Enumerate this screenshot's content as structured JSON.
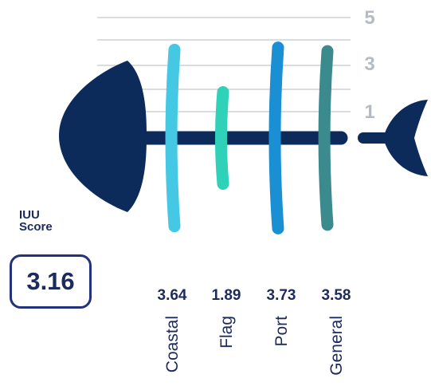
{
  "score": {
    "label": "IUU\nScore",
    "value": "3.16"
  },
  "chart_data": {
    "type": "bar",
    "categories": [
      "Coastal",
      "Flag",
      "Port",
      "General"
    ],
    "values": [
      3.64,
      1.89,
      3.73,
      3.58
    ],
    "value_labels": [
      "3.64",
      "1.89",
      "3.73",
      "3.58"
    ],
    "y_ticks": [
      "5",
      "3",
      "1"
    ],
    "ylim": [
      0,
      5
    ],
    "grid": true,
    "colors": {
      "Coastal": "#45c8e3",
      "Flag": "#2fd1b8",
      "Port": "#1a8fd3",
      "General": "#3a8a8e",
      "fish": "#0c2a5a",
      "grid": "#d9dde2",
      "tick": "#b3bcc4",
      "text": "#1d2a5c"
    }
  }
}
